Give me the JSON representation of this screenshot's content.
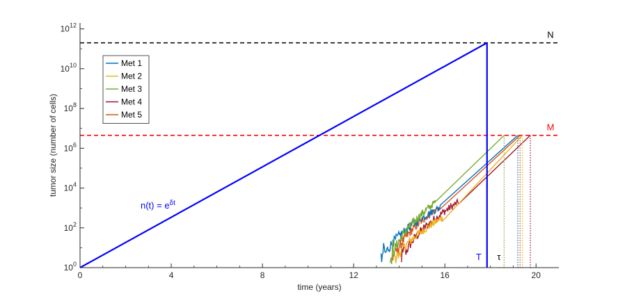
{
  "chart_data": {
    "type": "line",
    "xlabel": "time (years)",
    "ylabel": "tumor size (number of cells)",
    "xlim": [
      0,
      21
    ],
    "ylim_log10": [
      0,
      12.3
    ],
    "y_scale": "log",
    "x_ticks": [
      0,
      4,
      8,
      12,
      16,
      20
    ],
    "x_tick_labels": [
      "0",
      "4",
      "8",
      "12",
      "16",
      "20"
    ],
    "y_tick_exponents": [
      0,
      2,
      4,
      6,
      8,
      10,
      12
    ],
    "y_tick_base": "10",
    "grid": false,
    "legend_position": "top-left",
    "thresholds": [
      {
        "label": "N",
        "value_log10": 11.3,
        "color": "#000000"
      },
      {
        "label": "M",
        "value_log10": 6.65,
        "color": "#ff0000"
      }
    ],
    "primary": {
      "label_base": "n(t) = e",
      "label_exp": "δt",
      "color": "#0000ff",
      "points": [
        [
          0,
          0
        ],
        [
          17.85,
          11.3
        ]
      ]
    },
    "marker_T": {
      "label": "T",
      "x": 17.85,
      "color": "#0000ff"
    },
    "marker_tau": {
      "label": "τ"
    },
    "series": [
      {
        "name": "Met 1",
        "color": "#0072bd",
        "start_x": 13.2,
        "start_log10": 0.0,
        "stochastic_end_x": 15.8,
        "stochastic_end_log10": 3.05,
        "end_x": 19.2,
        "end_log10": 6.65
      },
      {
        "name": "Met 2",
        "color": "#edb120",
        "start_x": 13.8,
        "start_log10": 0.0,
        "stochastic_end_x": 15.9,
        "stochastic_end_log10": 2.5,
        "end_x": 19.4,
        "end_log10": 6.65
      },
      {
        "name": "Met 3",
        "color": "#77ac30",
        "start_x": 13.6,
        "start_log10": 0.0,
        "stochastic_end_x": 15.6,
        "stochastic_end_log10": 3.3,
        "end_x": 18.6,
        "end_log10": 6.65
      },
      {
        "name": "Met 4",
        "color": "#a2142f",
        "start_x": 14.1,
        "start_log10": 0.0,
        "stochastic_end_x": 16.6,
        "stochastic_end_log10": 3.3,
        "end_x": 19.75,
        "end_log10": 6.65
      },
      {
        "name": "Met 5",
        "color": "#d95319",
        "start_x": 13.7,
        "start_log10": 0.0,
        "stochastic_end_x": 15.7,
        "stochastic_end_log10": 3.0,
        "end_x": 19.3,
        "end_log10": 6.65
      }
    ]
  }
}
